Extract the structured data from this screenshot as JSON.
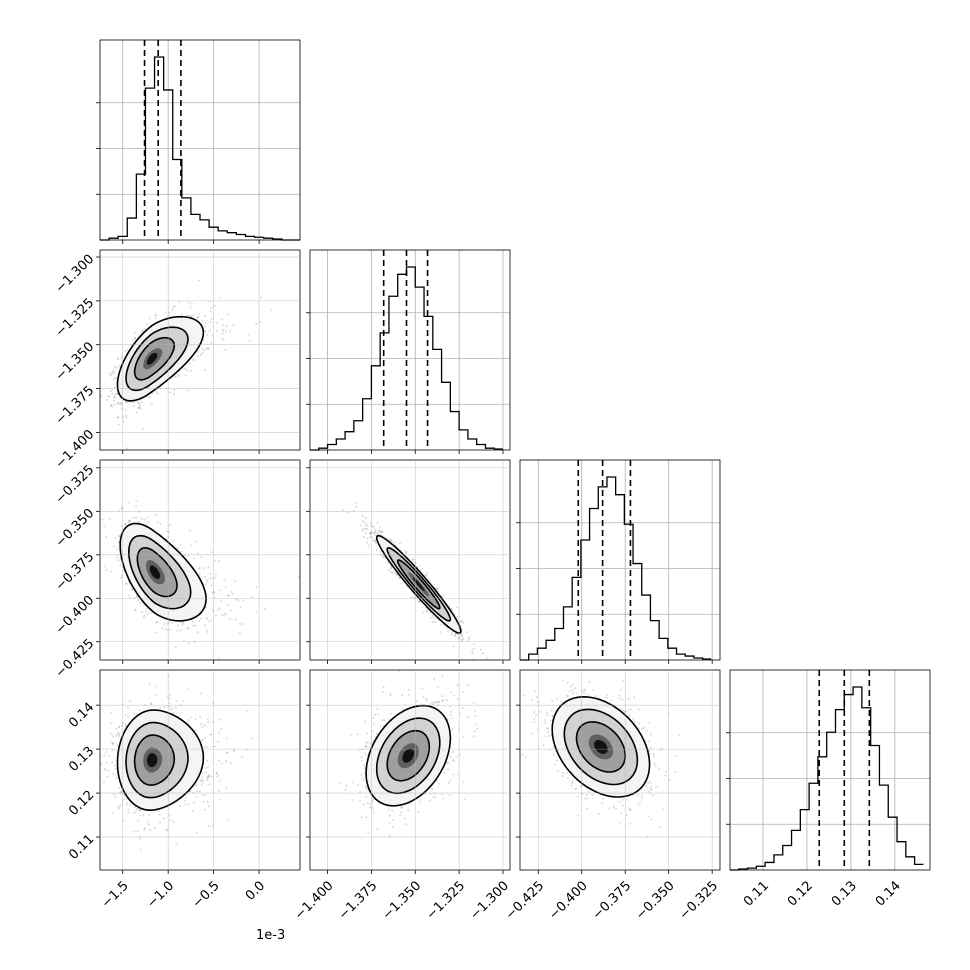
{
  "chart_data": {
    "type": "corner",
    "grid": true,
    "colors": {
      "lines": "#000000",
      "grid": "#b0b0b0",
      "points": "#555555"
    },
    "x_offset_label": "1e-3",
    "parameters": [
      {
        "range": [
          -1.75,
          0.45
        ],
        "ticks": [
          -1.5,
          -1.0,
          -0.5,
          0.0
        ],
        "tick_labels": [
          "−1.5",
          "−1.0",
          "−0.5",
          "0.0"
        ],
        "quantiles": [
          -1.26,
          -1.11,
          -0.86
        ],
        "mode": -1.15,
        "sigma": 0.21,
        "skew_right": 0.5,
        "hist_edges": [
          -1.75,
          -1.65,
          -1.55,
          -1.45,
          -1.35,
          -1.25,
          -1.15,
          -1.05,
          -0.95,
          -0.85,
          -0.75,
          -0.65,
          -0.55,
          -0.45,
          -0.35,
          -0.25,
          -0.15,
          -0.05,
          0.05,
          0.15,
          0.25,
          0.35,
          0.45
        ],
        "hist_counts": [
          0,
          0.01,
          0.02,
          0.12,
          0.36,
          0.83,
          1.0,
          0.82,
          0.44,
          0.23,
          0.14,
          0.11,
          0.07,
          0.05,
          0.04,
          0.03,
          0.02,
          0.015,
          0.01,
          0.005,
          0,
          0
        ]
      },
      {
        "range": [
          -1.41,
          -1.296
        ],
        "ticks": [
          -1.3,
          -1.325,
          -1.35,
          -1.375,
          -1.4
        ],
        "tick_labels": [
          "−1.300",
          "−1.325",
          "−1.350",
          "−1.375",
          "−1.400"
        ],
        "x_ticks": [
          -1.4,
          -1.375,
          -1.35,
          -1.325,
          -1.3
        ],
        "x_tick_labels": [
          "−1.400",
          "−1.375",
          "−1.350",
          "−1.325",
          "−1.300"
        ],
        "quantiles": [
          -1.368,
          -1.355,
          -1.343
        ],
        "mode": -1.356,
        "sigma": 0.012,
        "skew_right": 0,
        "hist_edges": [
          -1.41,
          -1.405,
          -1.4,
          -1.395,
          -1.39,
          -1.385,
          -1.38,
          -1.375,
          -1.37,
          -1.365,
          -1.36,
          -1.355,
          -1.35,
          -1.345,
          -1.34,
          -1.335,
          -1.33,
          -1.325,
          -1.32,
          -1.315,
          -1.31,
          -1.305,
          -1.3
        ],
        "hist_counts": [
          0,
          0.01,
          0.03,
          0.06,
          0.1,
          0.16,
          0.28,
          0.46,
          0.64,
          0.84,
          0.96,
          1.0,
          0.89,
          0.73,
          0.55,
          0.37,
          0.21,
          0.11,
          0.06,
          0.03,
          0.01,
          0.005
        ]
      },
      {
        "range": [
          -0.4355,
          -0.3205
        ],
        "ticks": [
          -0.325,
          -0.35,
          -0.375,
          -0.4,
          -0.425
        ],
        "tick_labels": [
          "−0.325",
          "−0.350",
          "−0.375",
          "−0.400",
          "−0.425"
        ],
        "x_ticks": [
          -0.425,
          -0.4,
          -0.375,
          -0.35,
          -0.325
        ],
        "x_tick_labels": [
          "−0.425",
          "−0.400",
          "−0.375",
          "−0.350",
          "−0.325"
        ],
        "quantiles": [
          -0.402,
          -0.388,
          -0.372
        ],
        "mode": -0.389,
        "sigma": 0.014,
        "skew_right": 0,
        "hist_edges": [
          -0.4355,
          -0.4305,
          -0.4255,
          -0.4205,
          -0.4155,
          -0.4105,
          -0.4055,
          -0.4005,
          -0.3955,
          -0.3905,
          -0.3855,
          -0.3805,
          -0.3755,
          -0.3705,
          -0.3655,
          -0.3605,
          -0.3555,
          -0.3505,
          -0.3455,
          -0.3405,
          -0.3355,
          -0.3305,
          -0.3255
        ],
        "hist_counts": [
          0,
          0.03,
          0.06,
          0.1,
          0.16,
          0.27,
          0.42,
          0.61,
          0.77,
          0.88,
          0.93,
          0.84,
          0.69,
          0.49,
          0.33,
          0.2,
          0.11,
          0.06,
          0.03,
          0.02,
          0.01,
          0.005
        ]
      },
      {
        "range": [
          0.1025,
          0.148
        ],
        "ticks": [
          0.14,
          0.13,
          0.12,
          0.11
        ],
        "tick_labels": [
          "0.14",
          "0.13",
          "0.12",
          "0.11"
        ],
        "x_ticks": [
          0.11,
          0.12,
          0.13,
          0.14
        ],
        "x_tick_labels": [
          "0.11",
          "0.12",
          "0.13",
          "0.14"
        ],
        "quantiles": [
          0.1228,
          0.1285,
          0.1342
        ],
        "mode": 0.1285,
        "sigma": 0.0057,
        "skew_right": 0,
        "hist_edges": [
          0.1025,
          0.1045,
          0.1065,
          0.1085,
          0.1105,
          0.1125,
          0.1145,
          0.1165,
          0.1185,
          0.1205,
          0.1225,
          0.1245,
          0.1265,
          0.1285,
          0.1305,
          0.1325,
          0.1345,
          0.1365,
          0.1385,
          0.1405,
          0.1425,
          0.1445,
          0.1465
        ],
        "hist_counts": [
          0,
          0.005,
          0.01,
          0.02,
          0.04,
          0.08,
          0.13,
          0.21,
          0.32,
          0.46,
          0.6,
          0.73,
          0.85,
          0.93,
          0.97,
          0.86,
          0.66,
          0.45,
          0.28,
          0.15,
          0.07,
          0.03
        ]
      }
    ],
    "pairs": [
      {
        "x": 0,
        "y": 1,
        "rho": 0.62,
        "peak": [
          -1.18,
          -1.358
        ],
        "contours": [
          0.5,
          1.0,
          1.5,
          2.0
        ]
      },
      {
        "x": 0,
        "y": 2,
        "rho": -0.55,
        "peak": [
          -1.15,
          -0.385
        ],
        "contours": [
          0.5,
          1.0,
          1.5,
          2.0
        ]
      },
      {
        "x": 1,
        "y": 2,
        "rho": -0.96,
        "peak": [
          -1.348,
          -0.392
        ],
        "contours": [
          0.5,
          1.0,
          1.5,
          2.0
        ]
      },
      {
        "x": 0,
        "y": 3,
        "rho": 0.05,
        "peak": [
          -1.18,
          0.1275
        ],
        "contours": [
          0.5,
          1.0,
          1.5,
          2.0
        ]
      },
      {
        "x": 1,
        "y": 3,
        "rho": 0.35,
        "peak": [
          -1.354,
          0.1285
        ],
        "contours": [
          0.5,
          1.0,
          1.5,
          2.0
        ]
      },
      {
        "x": 2,
        "y": 3,
        "rho": -0.35,
        "peak": [
          -0.389,
          0.1305
        ],
        "contours": [
          0.5,
          1.0,
          1.5,
          2.0
        ]
      }
    ]
  }
}
